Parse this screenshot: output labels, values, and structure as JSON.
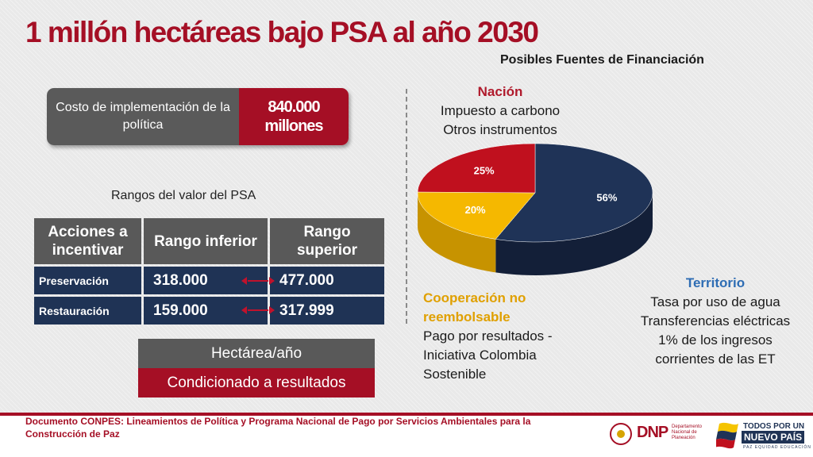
{
  "title": "1 millón hectáreas bajo PSA al año 2030",
  "financing_heading": "Posibles Fuentes de Financiación",
  "cost": {
    "label": "Costo de implementación de la política",
    "value": "840.000 millones"
  },
  "ranges_title": "Rangos del valor del PSA",
  "table": {
    "headers": [
      "Acciones a incentivar",
      "Rango inferior",
      "Rango superior"
    ],
    "rows": [
      {
        "action": "Preservación",
        "lower": "318.000",
        "upper": "477.000"
      },
      {
        "action": "Restauración",
        "lower": "159.000",
        "upper": "317.999"
      }
    ]
  },
  "unit_label": "Hectárea/año",
  "condition_label": "Condicionado a resultados",
  "sources": {
    "nacion": {
      "title": "Nación",
      "lines": [
        "Impuesto a carbono",
        "Otros instrumentos"
      ]
    },
    "territorio": {
      "title": "Territorio",
      "lines": [
        "Tasa por uso de agua",
        "Transferencias eléctricas",
        "1% de los ingresos",
        "corrientes de las ET"
      ]
    },
    "cooperacion": {
      "title": "Cooperación no reembolsable",
      "lines": [
        "Pago por resultados -",
        "Iniciativa Colombia",
        "Sostenible"
      ]
    }
  },
  "pie": {
    "slices": [
      {
        "label": "56%",
        "value": 56,
        "color": "#1f3357",
        "side": "#131f38"
      },
      {
        "label": "20%",
        "value": 20,
        "color": "#f5b800",
        "side": "#c79300"
      },
      {
        "label": "25%",
        "value": 25,
        "color": "#c0101e",
        "side": "#8a0a15"
      }
    ]
  },
  "footer": {
    "text": "Documento CONPES: Lineamientos de Política y Programa Nacional de Pago por Servicios Ambientales para la Construcción de Paz",
    "dnp": "DNP",
    "dnp_sub": "Departamento Nacional de Planeación",
    "todos": "TODOS POR UN",
    "nuevo": "NUEVO PAÍS",
    "tagline": "PAZ EQUIDAD EDUCACIÓN"
  }
}
